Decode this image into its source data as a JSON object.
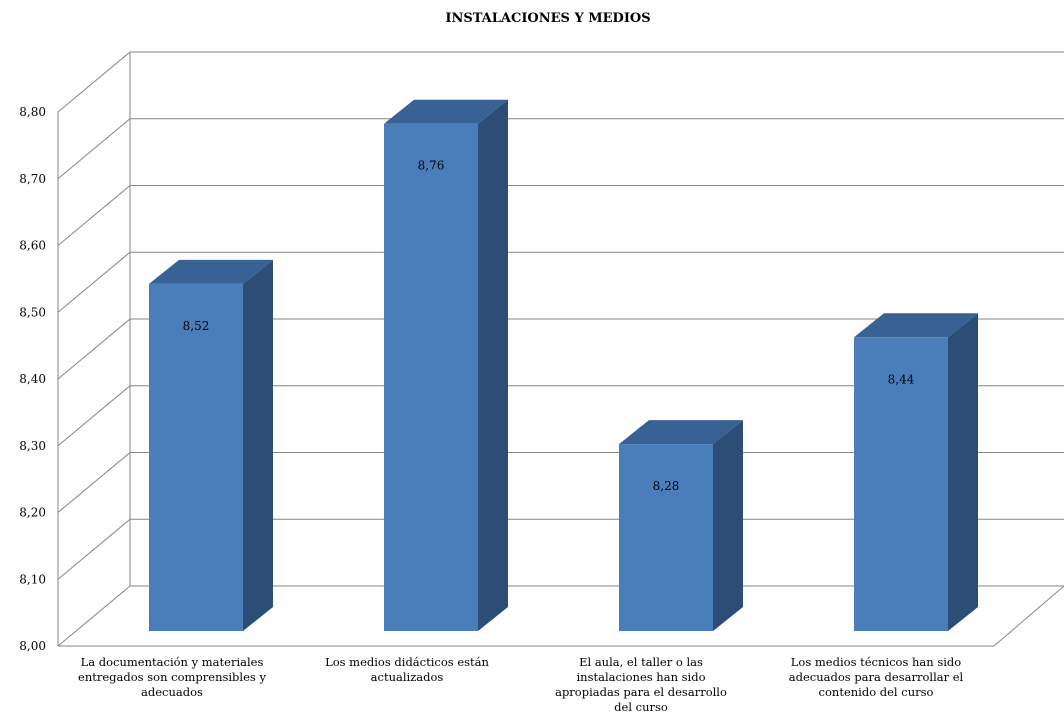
{
  "chart_data": {
    "type": "bar",
    "title": "INSTALACIONES Y MEDIOS",
    "categories": [
      [
        "La documentación y materiales",
        "entregados son comprensibles y",
        "adecuados"
      ],
      [
        "Los medios didácticos están",
        "actualizados"
      ],
      [
        "El aula, el taller o las",
        "instalaciones han sido",
        "apropiadas para el desarrollo",
        "del curso"
      ],
      [
        "Los medios técnicos han sido",
        "adecuados para desarrollar el",
        "contenido del curso"
      ]
    ],
    "values": [
      8.52,
      8.76,
      8.28,
      8.44
    ],
    "data_labels": [
      "8,52",
      "8,76",
      "8,28",
      "8,44"
    ],
    "ylim": [
      8.0,
      8.8
    ],
    "yticks": [
      "8,00",
      "8,10",
      "8,20",
      "8,30",
      "8,40",
      "8,50",
      "8,60",
      "8,70",
      "8,80"
    ],
    "grid": true,
    "style": "3d-column",
    "colors": {
      "bar_front": "#4a7ebb",
      "bar_side": "#2c4d75",
      "bar_top": "#386194",
      "grid": "#868686"
    }
  }
}
